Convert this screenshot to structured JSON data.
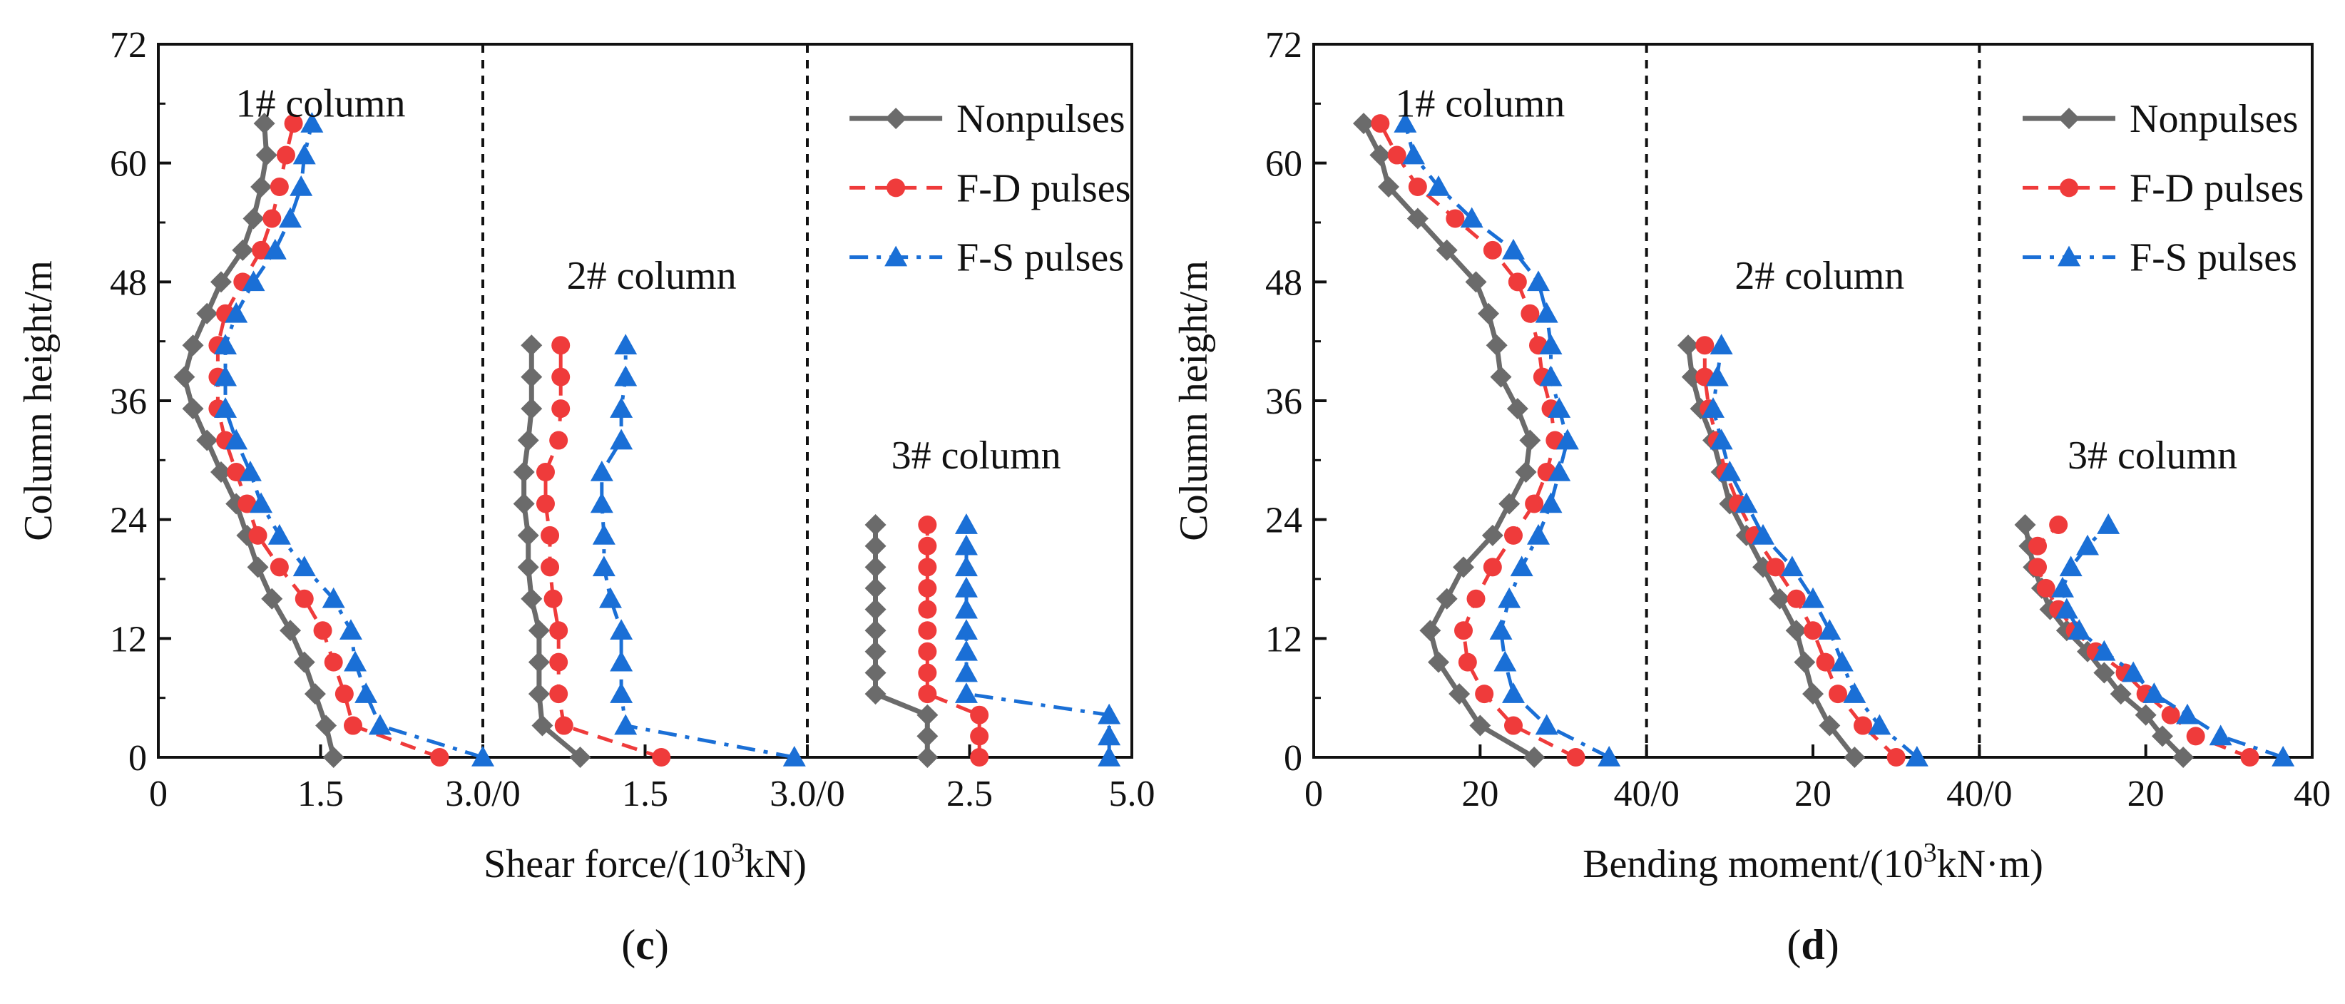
{
  "figure": {
    "colors": {
      "nonpulses": "#6b6b6b",
      "fd": "#ef3b3b",
      "fs": "#1a6fd6"
    },
    "series_names": [
      "Nonpulses",
      "F-D pulses",
      "F-S pulses"
    ],
    "panels": [
      {
        "id": "c",
        "label_prefix": "(",
        "label_letter": "c",
        "label_suffix": ")",
        "ylabel": "Column height/m",
        "xlabel_main": "Shear force/(10",
        "xlabel_sup": "3",
        "xlabel_end": "kN)",
        "y_ticks": [
          "0",
          "12",
          "24",
          "36",
          "48",
          "60",
          "72"
        ],
        "x_ticks": [
          "0",
          "1.5",
          "3.0/0",
          "1.5",
          "3.0/0",
          "2.5",
          "5.0"
        ]
      },
      {
        "id": "d",
        "label_prefix": "(",
        "label_letter": "d",
        "label_suffix": ")",
        "ylabel": "Column height/m",
        "xlabel_main": "Bending moment/(10",
        "xlabel_sup": "3",
        "xlabel_end": "kN·m)",
        "y_ticks": [
          "0",
          "12",
          "24",
          "36",
          "48",
          "60",
          "72"
        ],
        "x_ticks": [
          "0",
          "20",
          "40/0",
          "20",
          "40/0",
          "20",
          "40"
        ]
      }
    ]
  },
  "chart_data": [
    {
      "type": "line",
      "title": "(c)",
      "xlabel": "Shear force/(10^3kN)",
      "ylabel": "Column height/m",
      "ylim": [
        0,
        72
      ],
      "legend": "top-right",
      "subplots": [
        {
          "name": "1# column",
          "xlim": [
            0,
            3.0
          ],
          "heights": [
            0,
            3.2,
            6.4,
            9.6,
            12.8,
            16,
            19.2,
            22.4,
            25.6,
            28.8,
            32,
            35.2,
            38.4,
            41.6,
            44.8,
            48,
            51.2,
            54.4,
            57.6,
            60.8,
            64
          ],
          "series": [
            {
              "name": "Nonpulses",
              "values": [
                1.62,
                1.55,
                1.45,
                1.35,
                1.22,
                1.05,
                0.92,
                0.82,
                0.72,
                0.58,
                0.45,
                0.32,
                0.24,
                0.32,
                0.45,
                0.58,
                0.78,
                0.88,
                0.95,
                1.0,
                0.98
              ]
            },
            {
              "name": "F-D pulses",
              "values": [
                2.6,
                1.8,
                1.72,
                1.62,
                1.52,
                1.35,
                1.12,
                0.92,
                0.82,
                0.72,
                0.62,
                0.55,
                0.55,
                0.55,
                0.62,
                0.78,
                0.95,
                1.05,
                1.12,
                1.18,
                1.25
              ]
            },
            {
              "name": "F-S pulses",
              "values": [
                3.0,
                2.05,
                1.92,
                1.82,
                1.78,
                1.62,
                1.35,
                1.12,
                0.95,
                0.85,
                0.72,
                0.62,
                0.62,
                0.62,
                0.72,
                0.88,
                1.08,
                1.22,
                1.32,
                1.35,
                1.42
              ]
            }
          ]
        },
        {
          "name": "2# column",
          "xlim": [
            0,
            3.0
          ],
          "heights": [
            0,
            3.2,
            6.4,
            9.6,
            12.8,
            16,
            19.2,
            22.4,
            25.6,
            28.8,
            32,
            35.2,
            38.4,
            41.6
          ],
          "series": [
            {
              "name": "Nonpulses",
              "values": [
                0.9,
                0.55,
                0.52,
                0.52,
                0.52,
                0.45,
                0.42,
                0.42,
                0.38,
                0.38,
                0.42,
                0.45,
                0.45,
                0.45
              ]
            },
            {
              "name": "F-D pulses",
              "values": [
                1.65,
                0.75,
                0.7,
                0.7,
                0.7,
                0.65,
                0.62,
                0.62,
                0.58,
                0.58,
                0.7,
                0.72,
                0.72,
                0.72
              ]
            },
            {
              "name": "F-S pulses",
              "values": [
                2.88,
                1.32,
                1.28,
                1.28,
                1.28,
                1.18,
                1.12,
                1.12,
                1.1,
                1.1,
                1.28,
                1.28,
                1.32,
                1.32
              ]
            }
          ]
        },
        {
          "name": "3# column",
          "xlim": [
            0,
            5.0
          ],
          "heights": [
            0,
            2.13,
            4.27,
            6.4,
            8.53,
            10.67,
            12.8,
            14.93,
            17.07,
            19.2,
            21.33,
            23.47
          ],
          "series": [
            {
              "name": "Nonpulses",
              "values": [
                1.85,
                1.85,
                1.85,
                1.05,
                1.05,
                1.05,
                1.05,
                1.05,
                1.05,
                1.05,
                1.05,
                1.05
              ]
            },
            {
              "name": "F-D pulses",
              "values": [
                2.65,
                2.65,
                2.65,
                1.85,
                1.85,
                1.85,
                1.85,
                1.85,
                1.85,
                1.85,
                1.85,
                1.85
              ]
            },
            {
              "name": "F-S pulses",
              "values": [
                4.65,
                4.65,
                4.65,
                2.45,
                2.45,
                2.45,
                2.45,
                2.45,
                2.45,
                2.45,
                2.45,
                2.45
              ]
            }
          ]
        }
      ]
    },
    {
      "type": "line",
      "title": "(d)",
      "xlabel": "Bending moment/(10^3kN·m)",
      "ylabel": "Column height/m",
      "ylim": [
        0,
        72
      ],
      "legend": "top-right",
      "subplots": [
        {
          "name": "1# column",
          "xlim": [
            0,
            40
          ],
          "heights": [
            0,
            3.2,
            6.4,
            9.6,
            12.8,
            16,
            19.2,
            22.4,
            25.6,
            28.8,
            32,
            35.2,
            38.4,
            41.6,
            44.8,
            48,
            51.2,
            54.4,
            57.6,
            60.8,
            64
          ],
          "series": [
            {
              "name": "Nonpulses",
              "values": [
                26.5,
                20,
                17.5,
                15,
                14,
                16,
                18,
                21.5,
                23.5,
                25.5,
                26,
                24.5,
                22.5,
                22,
                21,
                19.5,
                16,
                12.5,
                9,
                8,
                6
              ]
            },
            {
              "name": "F-D pulses",
              "values": [
                31.5,
                24,
                20.5,
                18.5,
                18,
                19.5,
                21.5,
                24,
                26.5,
                28,
                29,
                28.5,
                27.5,
                27,
                26,
                24.5,
                21.5,
                17,
                12.5,
                10,
                8
              ]
            },
            {
              "name": "F-S pulses",
              "values": [
                35.5,
                28,
                24,
                23,
                22.5,
                23.5,
                25,
                27,
                28.5,
                29.5,
                30.5,
                29.5,
                28.5,
                28.5,
                28,
                27,
                24,
                19,
                15,
                12,
                11
              ]
            }
          ]
        },
        {
          "name": "2# column",
          "xlim": [
            0,
            40
          ],
          "heights": [
            0,
            3.2,
            6.4,
            9.6,
            12.8,
            16,
            19.2,
            22.4,
            25.6,
            28.8,
            32,
            35.2,
            38.4,
            41.6
          ],
          "series": [
            {
              "name": "Nonpulses",
              "values": [
                25,
                22,
                20,
                19,
                18,
                16,
                14,
                12,
                10,
                9,
                8,
                6.5,
                5.5,
                5
              ]
            },
            {
              "name": "F-D pulses",
              "values": [
                30,
                26,
                23,
                21.5,
                20,
                18,
                15.5,
                13,
                11,
                9.5,
                8.5,
                7.5,
                7,
                7
              ]
            },
            {
              "name": "F-S pulses",
              "values": [
                32.5,
                28,
                25,
                23.5,
                22,
                20,
                17.5,
                14,
                12,
                10,
                9,
                8,
                8.5,
                9
              ]
            }
          ]
        },
        {
          "name": "3# column",
          "xlim": [
            0,
            40
          ],
          "heights": [
            0,
            2.13,
            4.27,
            6.4,
            8.53,
            10.67,
            12.8,
            14.93,
            17.07,
            19.2,
            21.33,
            23.47
          ],
          "series": [
            {
              "name": "Nonpulses",
              "values": [
                24.5,
                22,
                20,
                17,
                15,
                13,
                10.5,
                8.5,
                7.5,
                6.5,
                6,
                5.5
              ]
            },
            {
              "name": "F-D pulses",
              "values": [
                32.5,
                26,
                23,
                20,
                17.5,
                14,
                11.5,
                9.5,
                8,
                7,
                7,
                9.5
              ]
            },
            {
              "name": "F-S pulses",
              "values": [
                36.5,
                29,
                25,
                21,
                18.5,
                15,
                12,
                10.5,
                10,
                11,
                13,
                15.5
              ]
            }
          ]
        }
      ]
    }
  ]
}
